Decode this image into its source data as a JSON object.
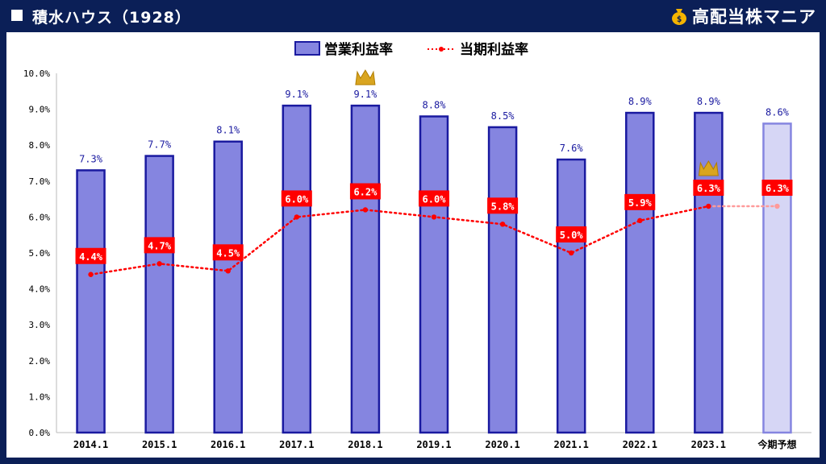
{
  "header": {
    "title": "積水ハウス（1928）",
    "brand": "高配当株マニア",
    "bg_color": "#0b1f57"
  },
  "chart_data": {
    "type": "bar",
    "categories": [
      "2014.1",
      "2015.1",
      "2016.1",
      "2017.1",
      "2018.1",
      "2019.1",
      "2020.1",
      "2021.1",
      "2022.1",
      "2023.1",
      "今期予想"
    ],
    "series": [
      {
        "name": "営業利益率",
        "type": "bar",
        "values": [
          7.3,
          7.7,
          8.1,
          9.1,
          9.1,
          8.8,
          8.5,
          7.6,
          8.9,
          8.9,
          8.6
        ],
        "labels": [
          "7.3%",
          "7.7%",
          "8.1%",
          "9.1%",
          "9.1%",
          "8.8%",
          "8.5%",
          "7.6%",
          "8.9%",
          "8.9%",
          "8.6%"
        ],
        "color": "#8585e0",
        "border_color": "#1a1aa0",
        "forecast_color": "#d6d6f5"
      },
      {
        "name": "当期利益率",
        "type": "line",
        "values": [
          4.4,
          4.7,
          4.5,
          6.0,
          6.2,
          6.0,
          5.8,
          5.0,
          5.9,
          6.3,
          6.3
        ],
        "labels": [
          "4.4%",
          "4.7%",
          "4.5%",
          "6.0%",
          "6.2%",
          "6.0%",
          "5.8%",
          "5.0%",
          "5.9%",
          "6.3%",
          "6.3%"
        ],
        "color": "#ff0000",
        "label_bg": "#ff0000"
      }
    ],
    "yticks": [
      "0.0%",
      "1.0%",
      "2.0%",
      "3.0%",
      "4.0%",
      "5.0%",
      "6.0%",
      "7.0%",
      "8.0%",
      "9.0%",
      "10.0%"
    ],
    "ylim": [
      0,
      10
    ],
    "forecast_category": "今期予想",
    "crown_icons": [
      {
        "series": "営業利益率",
        "category": "2018.1",
        "icon": "crown-icon"
      },
      {
        "series": "当期利益率",
        "category": "2023.1",
        "icon": "crown-icon"
      }
    ],
    "legend": "top-center",
    "grid": false
  }
}
